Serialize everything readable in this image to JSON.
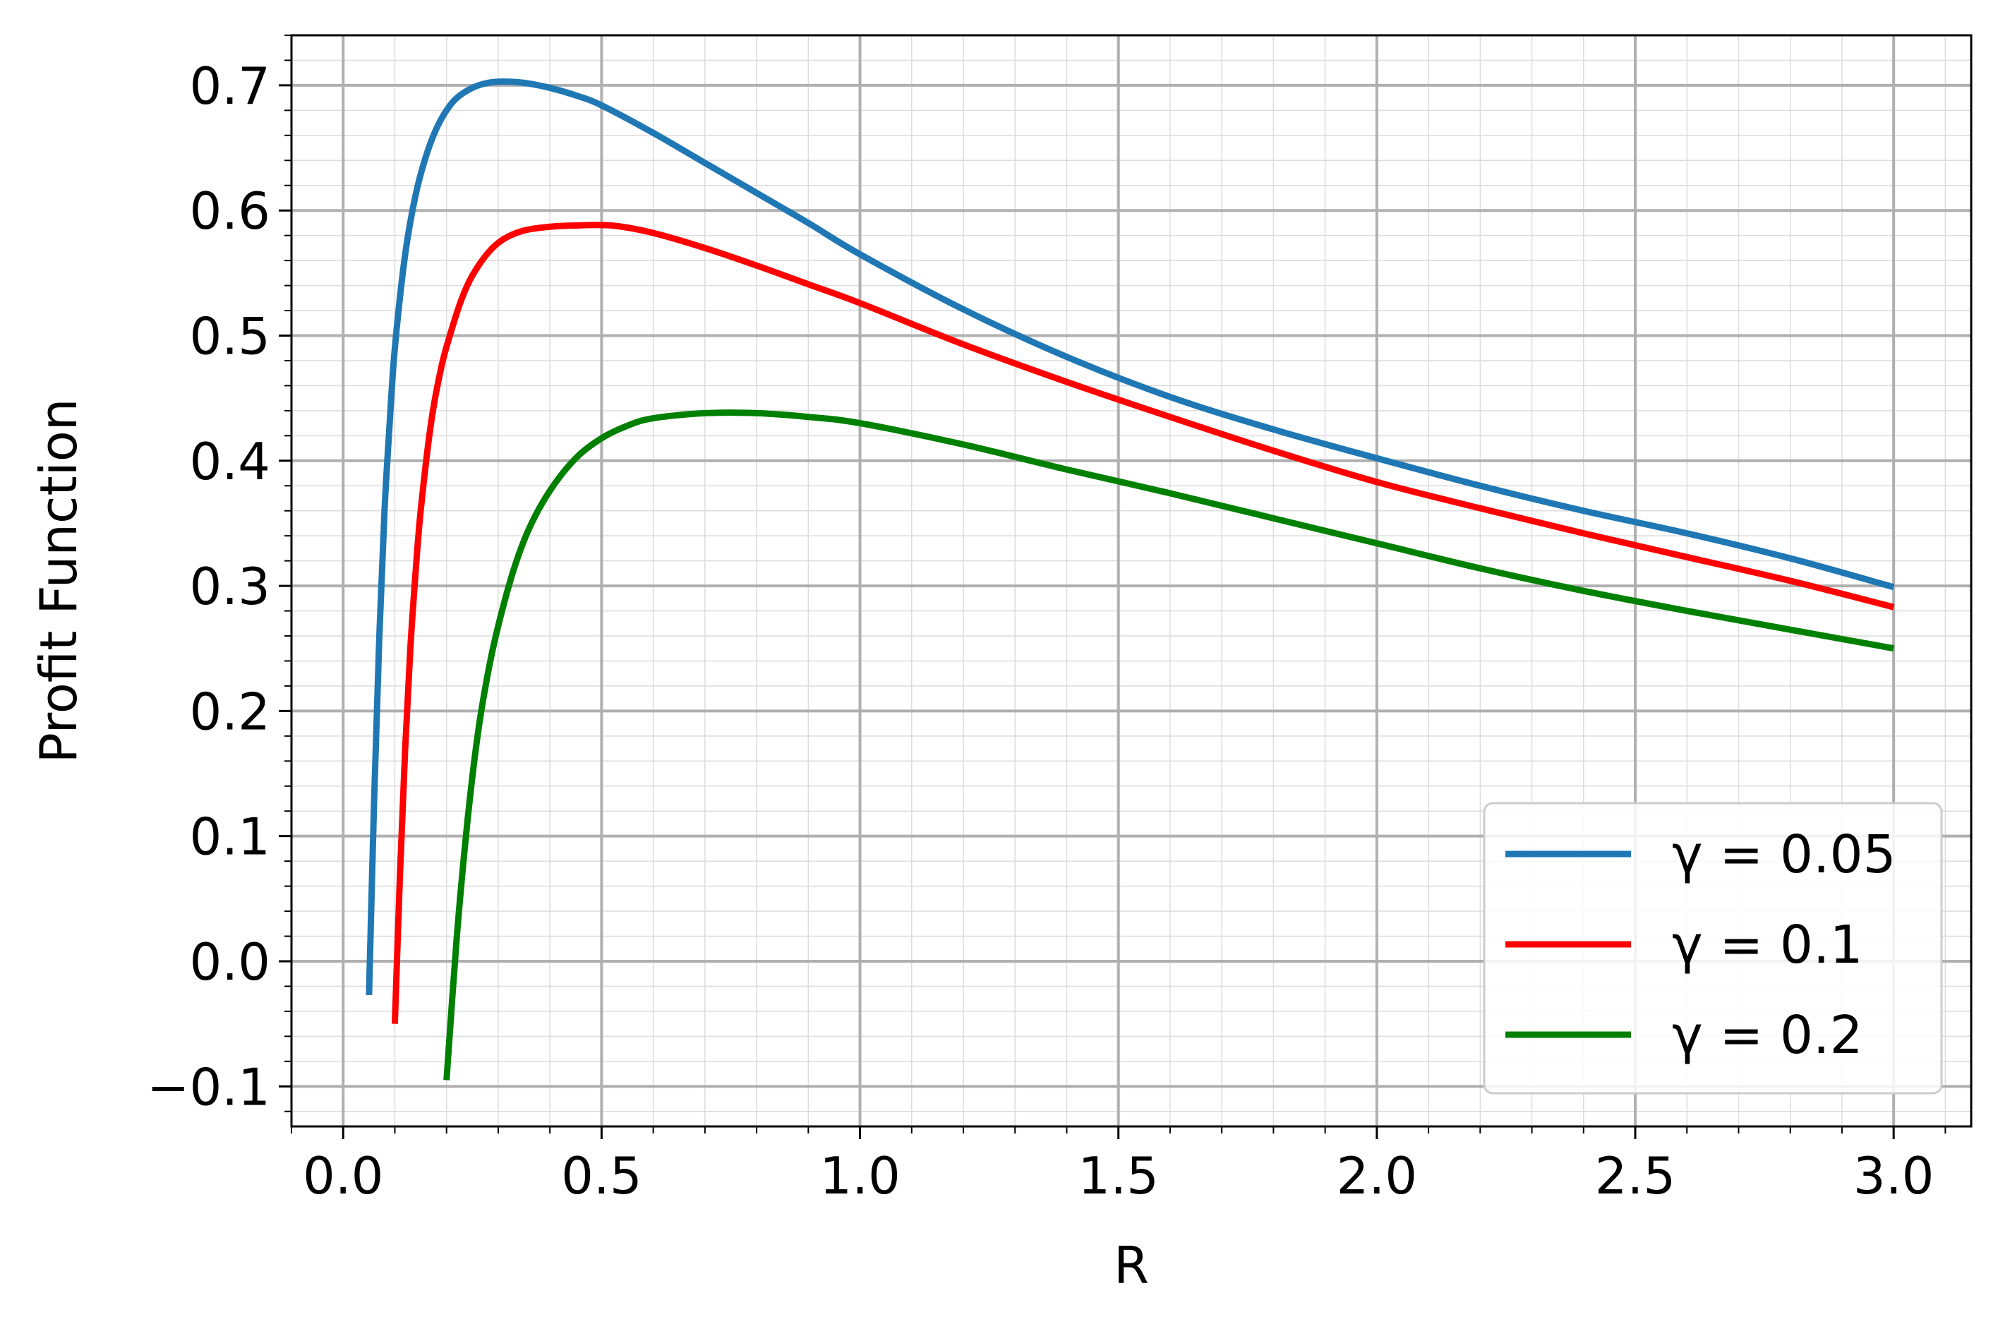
{
  "chart_data": {
    "type": "line",
    "title": "",
    "xlabel": "R",
    "ylabel": "Profit Function",
    "xlim": [
      -0.1,
      3.15
    ],
    "ylim": [
      -0.132,
      0.74
    ],
    "x_ticks": [
      0.0,
      0.5,
      1.0,
      1.5,
      2.0,
      2.5,
      3.0
    ],
    "x_tick_labels": [
      "0.0",
      "0.5",
      "1.0",
      "1.5",
      "2.0",
      "2.5",
      "3.0"
    ],
    "y_ticks": [
      -0.1,
      0.0,
      0.1,
      0.2,
      0.3,
      0.4,
      0.5,
      0.6,
      0.7
    ],
    "y_tick_labels": [
      "−0.1",
      "0.0",
      "0.1",
      "0.2",
      "0.3",
      "0.4",
      "0.5",
      "0.6",
      "0.7"
    ],
    "grid": {
      "major": true,
      "minor": true
    },
    "legend": {
      "position": "lower-right"
    },
    "series": [
      {
        "name": "γ = 0.05",
        "color": "#1f77b4",
        "x": [
          0.05,
          0.06,
          0.07,
          0.08,
          0.09,
          0.1,
          0.12,
          0.14,
          0.16,
          0.18,
          0.2,
          0.22,
          0.25,
          0.28,
          0.31,
          0.35,
          0.4,
          0.45,
          0.5,
          0.6,
          0.7,
          0.8,
          0.9,
          1.0,
          1.2,
          1.4,
          1.6,
          1.8,
          2.0,
          2.2,
          2.4,
          2.6,
          2.8,
          3.0
        ],
        "y": [
          -0.027,
          0.13,
          0.26,
          0.36,
          0.43,
          0.49,
          0.565,
          0.612,
          0.643,
          0.665,
          0.68,
          0.69,
          0.698,
          0.702,
          0.703,
          0.702,
          0.698,
          0.692,
          0.684,
          0.662,
          0.638,
          0.614,
          0.59,
          0.565,
          0.521,
          0.483,
          0.451,
          0.425,
          0.402,
          0.38,
          0.36,
          0.342,
          0.322,
          0.299
        ]
      },
      {
        "name": "γ = 0.1",
        "color": "#ff0000",
        "x": [
          0.1,
          0.11,
          0.12,
          0.13,
          0.14,
          0.15,
          0.17,
          0.19,
          0.21,
          0.23,
          0.25,
          0.28,
          0.31,
          0.35,
          0.4,
          0.45,
          0.52,
          0.6,
          0.7,
          0.8,
          0.9,
          1.0,
          1.2,
          1.4,
          1.6,
          1.8,
          2.0,
          2.2,
          2.4,
          2.6,
          2.8,
          3.0
        ],
        "y": [
          -0.05,
          0.07,
          0.17,
          0.25,
          0.31,
          0.36,
          0.43,
          0.475,
          0.505,
          0.53,
          0.548,
          0.566,
          0.577,
          0.584,
          0.587,
          0.588,
          0.588,
          0.582,
          0.57,
          0.556,
          0.541,
          0.526,
          0.493,
          0.463,
          0.435,
          0.408,
          0.383,
          0.362,
          0.342,
          0.323,
          0.304,
          0.283
        ]
      },
      {
        "name": "γ = 0.2",
        "color": "#008000",
        "x": [
          0.2,
          0.22,
          0.24,
          0.26,
          0.28,
          0.3,
          0.33,
          0.36,
          0.4,
          0.45,
          0.5,
          0.55,
          0.6,
          0.7,
          0.8,
          0.9,
          1.0,
          1.2,
          1.4,
          1.6,
          1.8,
          2.0,
          2.2,
          2.4,
          2.6,
          2.8,
          3.0
        ],
        "y": [
          -0.095,
          0.02,
          0.11,
          0.18,
          0.23,
          0.268,
          0.313,
          0.346,
          0.376,
          0.402,
          0.418,
          0.428,
          0.434,
          0.438,
          0.438,
          0.435,
          0.43,
          0.413,
          0.393,
          0.374,
          0.354,
          0.334,
          0.314,
          0.296,
          0.28,
          0.265,
          0.25
        ]
      }
    ]
  }
}
